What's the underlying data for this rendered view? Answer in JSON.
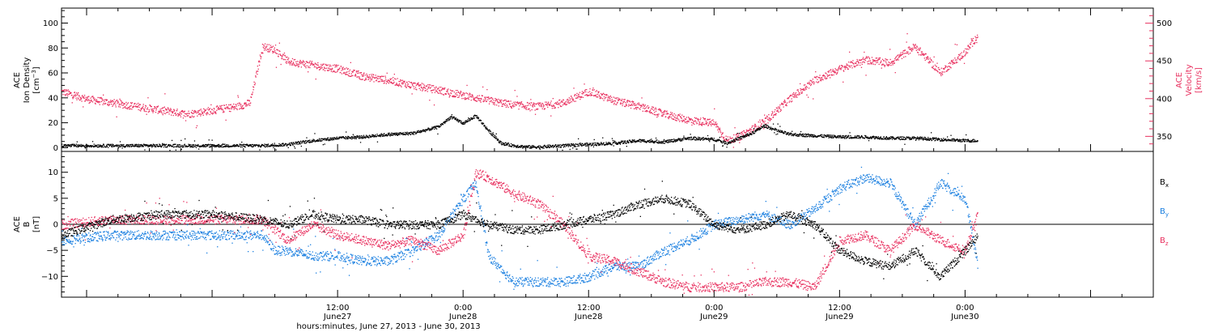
{
  "colors": {
    "axis": "#000000",
    "velocity": "#e8305f",
    "by": "#1a7fe0",
    "bz": "#e8305f",
    "bx": "#000000",
    "density": "#000000"
  },
  "chart_data": [
    {
      "type": "scatter",
      "panel": "top",
      "xlim": [
        -0.6,
        3.75
      ],
      "x_unit": "days since June 27, 2013 00:00",
      "ylim_left": [
        -3,
        112
      ],
      "ylim_right": [
        330,
        520
      ],
      "yticks_left": [
        0,
        20,
        40,
        60,
        80,
        100
      ],
      "yticks_right": [
        350,
        400,
        450,
        500
      ],
      "left_axis": {
        "line1": "ACE",
        "line2": "Ion Density",
        "unit_pre": "[cm",
        "unit_sup": "−3",
        "unit_post": "]"
      },
      "right_axis": {
        "line1": "ACE",
        "line2": "Velocity",
        "unit": "[km/s]"
      },
      "series": [
        {
          "name": "Ion Density",
          "axis": "left",
          "color": "#000000",
          "x": [
            -0.6,
            -0.4,
            -0.2,
            0.0,
            0.2,
            0.3,
            0.4,
            0.5,
            0.6,
            0.7,
            0.8,
            0.9,
            0.95,
            1.0,
            1.05,
            1.1,
            1.15,
            1.2,
            1.25,
            1.3,
            1.4,
            1.5,
            1.6,
            1.7,
            1.8,
            1.9,
            2.0,
            2.05,
            2.1,
            2.15,
            2.2,
            2.25,
            2.3,
            2.4,
            2.5,
            2.6,
            2.7,
            2.8,
            2.9,
            3.0,
            3.05
          ],
          "y": [
            2,
            2,
            2,
            2,
            2,
            3,
            6,
            8,
            9,
            11,
            12,
            17,
            25,
            20,
            26,
            14,
            4,
            2,
            1,
            1,
            2,
            3,
            4,
            6,
            5,
            8,
            7,
            4,
            8,
            12,
            18,
            14,
            11,
            10,
            9,
            9,
            8,
            8,
            7,
            6,
            6
          ]
        },
        {
          "name": "Velocity",
          "axis": "right",
          "color": "#e8305f",
          "x": [
            -0.6,
            -0.5,
            -0.4,
            -0.3,
            -0.2,
            -0.1,
            0.0,
            0.1,
            0.15,
            0.2,
            0.25,
            0.3,
            0.4,
            0.5,
            0.6,
            0.7,
            0.8,
            0.9,
            1.0,
            1.1,
            1.2,
            1.3,
            1.4,
            1.5,
            1.6,
            1.7,
            1.8,
            1.9,
            2.0,
            2.05,
            2.1,
            2.2,
            2.3,
            2.4,
            2.5,
            2.6,
            2.7,
            2.8,
            2.9,
            3.0,
            3.05
          ],
          "y": [
            410,
            400,
            395,
            390,
            385,
            380,
            385,
            390,
            395,
            470,
            465,
            450,
            445,
            440,
            430,
            425,
            418,
            412,
            405,
            398,
            392,
            390,
            395,
            410,
            398,
            390,
            380,
            372,
            368,
            345,
            350,
            370,
            400,
            425,
            440,
            452,
            448,
            470,
            435,
            462,
            485
          ]
        }
      ]
    },
    {
      "type": "scatter",
      "panel": "bottom",
      "xlim": [
        -0.6,
        3.75
      ],
      "x_unit": "days since June 27, 2013 00:00",
      "ylim": [
        -14,
        14
      ],
      "yticks": [
        -10,
        -5,
        0,
        5,
        10
      ],
      "ytick_labels": [
        "−10",
        "−5",
        "0",
        "5",
        "10"
      ],
      "left_axis": {
        "line1": "ACE",
        "line2": "B",
        "unit": "[nT]"
      },
      "xticks": [
        0.5,
        1.0,
        1.5,
        2.0,
        2.5,
        3.0
      ],
      "xtick_labels": [
        {
          "time": "12:00",
          "date": "June27"
        },
        {
          "time": "0:00",
          "date": "June28"
        },
        {
          "time": "12:00",
          "date": "June28"
        },
        {
          "time": "0:00",
          "date": "June29"
        },
        {
          "time": "12:00",
          "date": "June29"
        },
        {
          "time": "0:00",
          "date": "June30"
        }
      ],
      "xlabel": "hours:minutes, June 27, 2013 - June 30, 2013",
      "series": [
        {
          "name": "Bx",
          "label_base": "B",
          "label_sub": "x",
          "color": "#000000",
          "x": [
            -0.6,
            -0.4,
            -0.2,
            0.0,
            0.2,
            0.3,
            0.4,
            0.5,
            0.6,
            0.7,
            0.8,
            0.9,
            1.0,
            1.1,
            1.2,
            1.3,
            1.4,
            1.5,
            1.6,
            1.7,
            1.8,
            1.9,
            2.0,
            2.1,
            2.2,
            2.3,
            2.4,
            2.5,
            2.6,
            2.7,
            2.8,
            2.9,
            3.0,
            3.05
          ],
          "y": [
            -2,
            1,
            2,
            2,
            1,
            0,
            2,
            1,
            1,
            0,
            0,
            0,
            2,
            0,
            -1,
            -1,
            0,
            1,
            2,
            4,
            5,
            4,
            0,
            -1,
            0,
            2,
            0,
            -5,
            -7,
            -8,
            -5,
            -10,
            -5,
            -2
          ]
        },
        {
          "name": "By",
          "label_base": "B",
          "label_sub": "y",
          "color": "#1a7fe0",
          "x": [
            -0.6,
            -0.4,
            -0.2,
            0.0,
            0.2,
            0.25,
            0.3,
            0.4,
            0.5,
            0.6,
            0.7,
            0.8,
            0.9,
            1.0,
            1.05,
            1.1,
            1.2,
            1.3,
            1.4,
            1.5,
            1.6,
            1.7,
            1.8,
            1.9,
            2.0,
            2.1,
            2.2,
            2.3,
            2.4,
            2.5,
            2.6,
            2.7,
            2.8,
            2.9,
            3.0,
            3.05
          ],
          "y": [
            -3,
            -2,
            -2,
            -2,
            -2,
            -5,
            -5,
            -6,
            -6,
            -7,
            -7,
            -5,
            -2,
            5,
            8,
            -6,
            -11,
            -11,
            -11,
            -10,
            -8,
            -8,
            -5,
            -3,
            0,
            1,
            2,
            0,
            3,
            7,
            9,
            8,
            0,
            8,
            5,
            -8
          ]
        },
        {
          "name": "Bz",
          "label_base": "B",
          "label_sub": "z",
          "color": "#e8305f",
          "x": [
            -0.6,
            -0.4,
            -0.2,
            0.0,
            0.2,
            0.3,
            0.4,
            0.5,
            0.6,
            0.7,
            0.8,
            0.9,
            1.0,
            1.05,
            1.1,
            1.2,
            1.3,
            1.4,
            1.5,
            1.6,
            1.7,
            1.8,
            1.9,
            2.0,
            2.1,
            2.2,
            2.3,
            2.4,
            2.5,
            2.6,
            2.7,
            2.8,
            2.9,
            3.0,
            3.05
          ],
          "y": [
            0,
            1,
            1,
            1,
            1,
            -3,
            0,
            -2,
            -3,
            -4,
            -3,
            -5,
            -2,
            10,
            9,
            6,
            4,
            0,
            -6,
            -7,
            -9,
            -11,
            -12,
            -12,
            -12,
            -11,
            -11,
            -12,
            -3,
            -2,
            -5,
            0,
            -3,
            -5,
            2
          ]
        }
      ]
    }
  ]
}
